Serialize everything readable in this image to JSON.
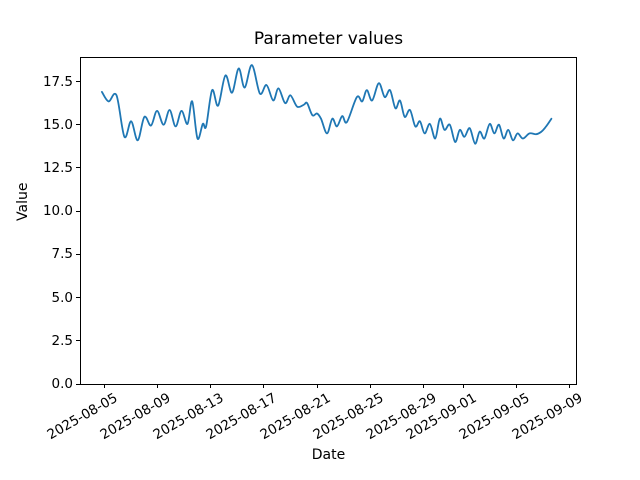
{
  "chart_data": {
    "type": "line",
    "title": "Parameter values",
    "xlabel": "Date",
    "ylabel": "Value",
    "grid": false,
    "legend": false,
    "line_color": "#1f77b4",
    "line_width": 1.8,
    "x_unit": "days since 2025-08-05",
    "xlim": [
      -1.77,
      35.5
    ],
    "ylim": [
      0,
      18.86
    ],
    "yticks": [
      {
        "value": 0.0,
        "label": "0.0"
      },
      {
        "value": 2.5,
        "label": "2.5"
      },
      {
        "value": 5.0,
        "label": "5.0"
      },
      {
        "value": 7.5,
        "label": "7.5"
      },
      {
        "value": 10.0,
        "label": "10.0"
      },
      {
        "value": 12.5,
        "label": "12.5"
      },
      {
        "value": 15.0,
        "label": "15.0"
      },
      {
        "value": 17.5,
        "label": "17.5"
      }
    ],
    "xticks": [
      {
        "day": 0,
        "label": "2025-08-05"
      },
      {
        "day": 4,
        "label": "2025-08-09"
      },
      {
        "day": 8,
        "label": "2025-08-13"
      },
      {
        "day": 12,
        "label": "2025-08-17"
      },
      {
        "day": 16,
        "label": "2025-08-21"
      },
      {
        "day": 20,
        "label": "2025-08-25"
      },
      {
        "day": 24,
        "label": "2025-08-29"
      },
      {
        "day": 27,
        "label": "2025-09-01"
      },
      {
        "day": 31,
        "label": "2025-09-05"
      },
      {
        "day": 35,
        "label": "2025-09-09"
      }
    ],
    "series": [
      {
        "name": "Parameter values",
        "points": [
          [
            -0.2,
            16.9
          ],
          [
            0.3,
            16.35
          ],
          [
            0.9,
            16.7
          ],
          [
            1.5,
            14.3
          ],
          [
            2.0,
            15.2
          ],
          [
            2.5,
            14.1
          ],
          [
            3.0,
            15.45
          ],
          [
            3.5,
            14.95
          ],
          [
            3.95,
            15.8
          ],
          [
            4.45,
            15.0
          ],
          [
            4.9,
            15.85
          ],
          [
            5.35,
            14.9
          ],
          [
            5.8,
            15.8
          ],
          [
            6.25,
            15.05
          ],
          [
            6.6,
            16.35
          ],
          [
            7.0,
            14.2
          ],
          [
            7.4,
            15.05
          ],
          [
            7.65,
            14.9
          ],
          [
            8.1,
            17.0
          ],
          [
            8.55,
            16.1
          ],
          [
            9.1,
            17.85
          ],
          [
            9.6,
            16.85
          ],
          [
            10.1,
            18.25
          ],
          [
            10.55,
            17.15
          ],
          [
            11.1,
            18.45
          ],
          [
            11.7,
            16.8
          ],
          [
            12.2,
            17.3
          ],
          [
            12.7,
            16.4
          ],
          [
            13.1,
            17.1
          ],
          [
            13.6,
            16.25
          ],
          [
            14.0,
            16.7
          ],
          [
            14.5,
            16.05
          ],
          [
            15.0,
            16.15
          ],
          [
            15.25,
            16.25
          ],
          [
            15.65,
            15.55
          ],
          [
            16.0,
            15.65
          ],
          [
            16.3,
            15.35
          ],
          [
            16.75,
            14.5
          ],
          [
            17.15,
            15.35
          ],
          [
            17.5,
            14.9
          ],
          [
            17.9,
            15.5
          ],
          [
            18.25,
            15.15
          ],
          [
            19.0,
            16.6
          ],
          [
            19.4,
            16.35
          ],
          [
            19.75,
            17.0
          ],
          [
            20.15,
            16.4
          ],
          [
            20.65,
            17.4
          ],
          [
            21.1,
            16.6
          ],
          [
            21.5,
            17.0
          ],
          [
            21.9,
            15.95
          ],
          [
            22.25,
            16.4
          ],
          [
            22.6,
            15.45
          ],
          [
            23.0,
            15.85
          ],
          [
            23.4,
            14.9
          ],
          [
            23.75,
            15.2
          ],
          [
            24.1,
            14.5
          ],
          [
            24.5,
            15.05
          ],
          [
            24.9,
            14.2
          ],
          [
            25.25,
            15.35
          ],
          [
            25.6,
            14.7
          ],
          [
            26.0,
            15.0
          ],
          [
            26.4,
            14.0
          ],
          [
            26.75,
            14.7
          ],
          [
            27.1,
            14.3
          ],
          [
            27.5,
            14.8
          ],
          [
            27.9,
            13.9
          ],
          [
            28.25,
            14.6
          ],
          [
            28.6,
            14.2
          ],
          [
            29.0,
            15.05
          ],
          [
            29.35,
            14.5
          ],
          [
            29.7,
            15.0
          ],
          [
            30.05,
            14.2
          ],
          [
            30.4,
            14.7
          ],
          [
            30.75,
            14.1
          ],
          [
            31.1,
            14.5
          ],
          [
            31.5,
            14.2
          ],
          [
            32.0,
            14.5
          ],
          [
            32.5,
            14.45
          ],
          [
            32.9,
            14.6
          ],
          [
            33.25,
            14.9
          ],
          [
            33.65,
            15.35
          ]
        ]
      }
    ]
  }
}
